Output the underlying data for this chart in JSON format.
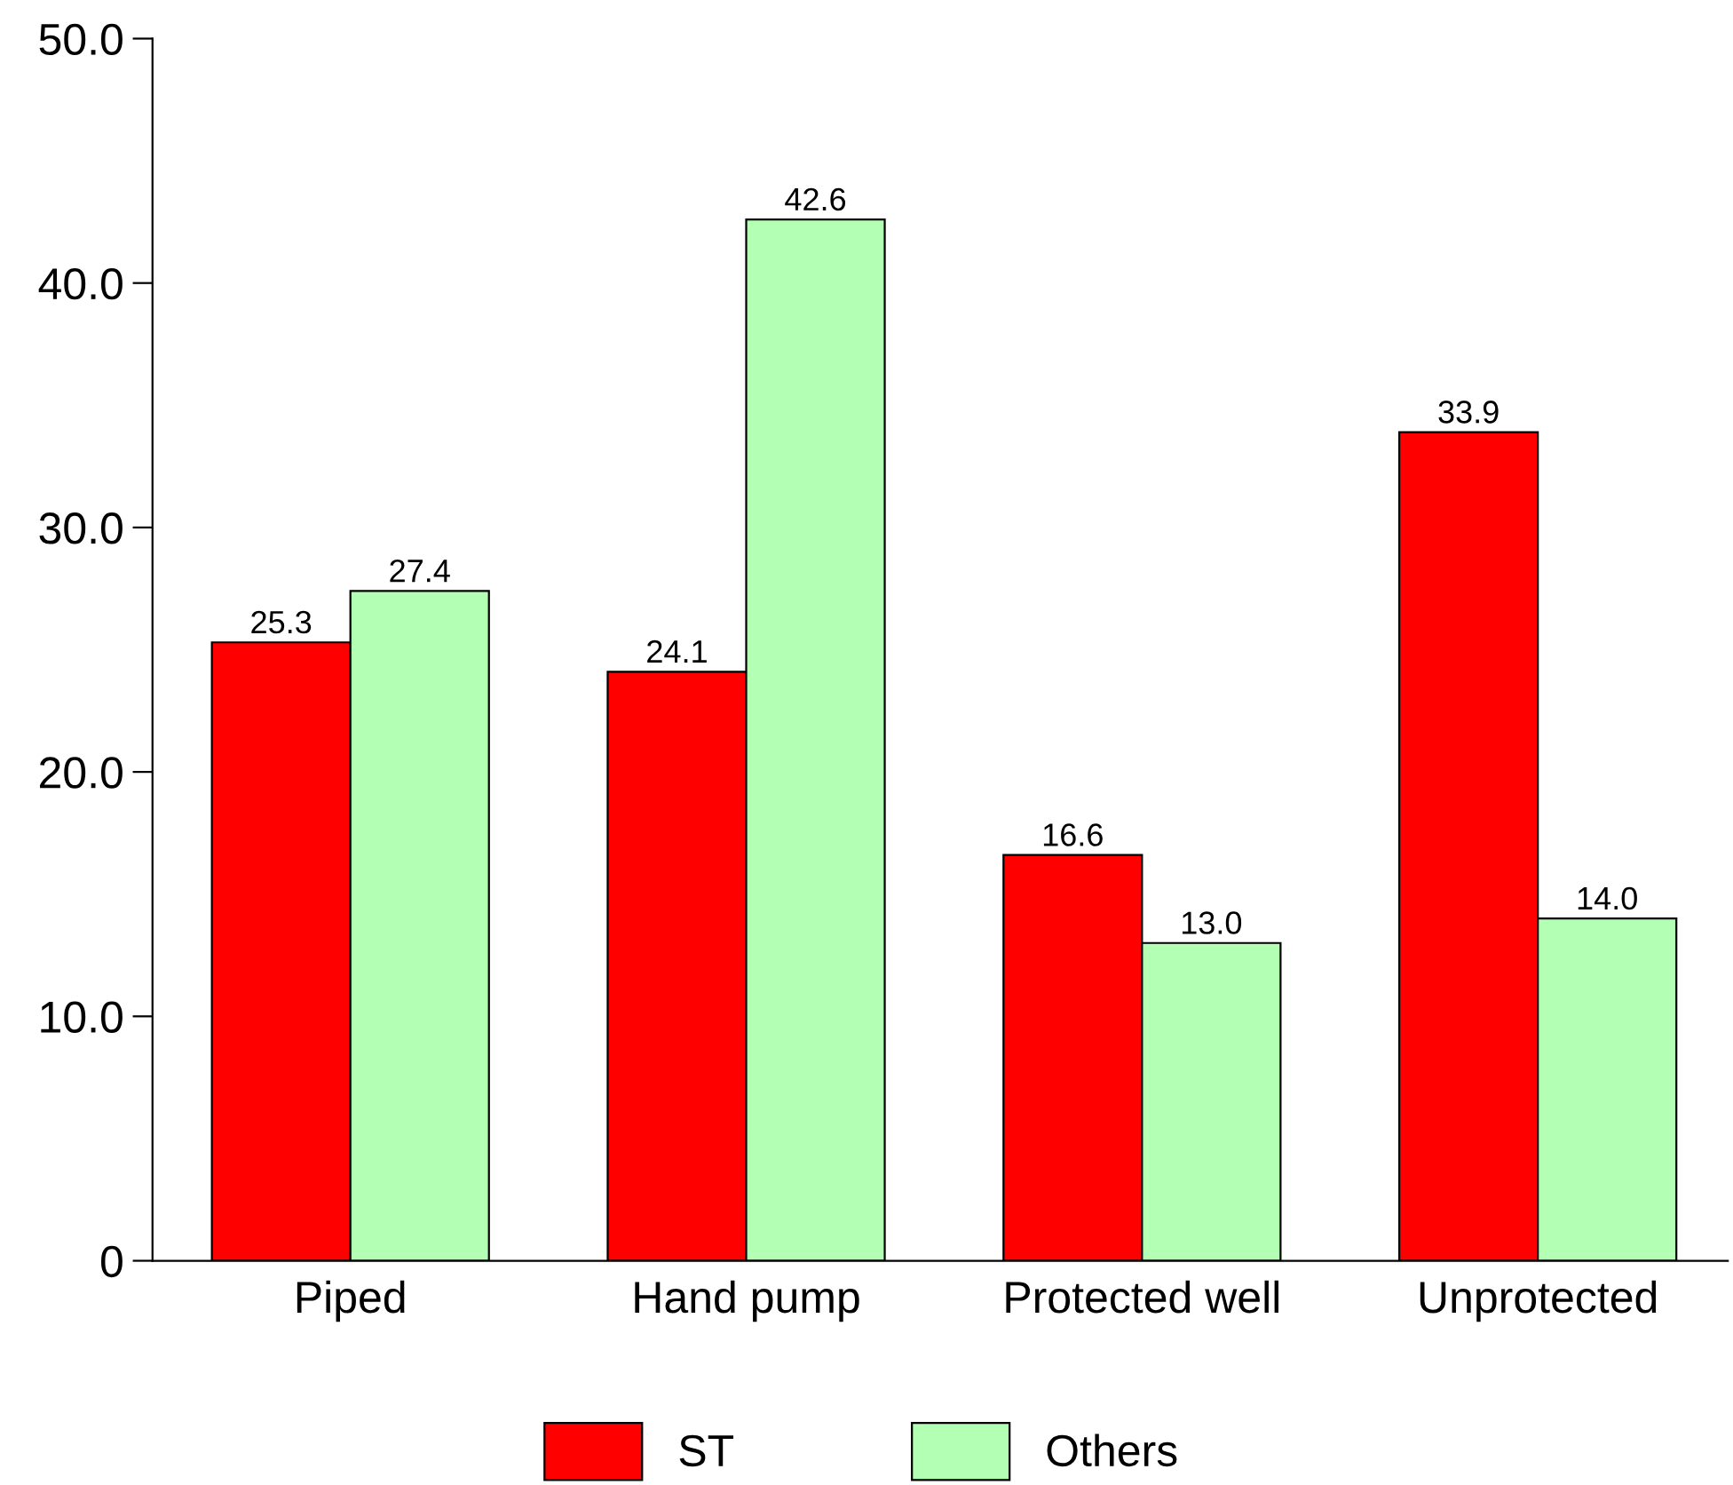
{
  "chart_data": {
    "type": "bar",
    "categories": [
      "Piped",
      "Hand pump",
      "Protected well",
      "Unprotected"
    ],
    "series": [
      {
        "name": "ST",
        "color": "#ff0000",
        "values": [
          25.3,
          24.1,
          16.6,
          33.9
        ],
        "value_labels": [
          "25.3",
          "24.1",
          "16.6",
          "33.9"
        ]
      },
      {
        "name": "Others",
        "color": "#b3ffb3",
        "values": [
          27.4,
          42.6,
          13.0,
          14.0
        ],
        "value_labels": [
          "27.4",
          "42.6",
          "13.0",
          "14.0"
        ]
      }
    ],
    "ylim": [
      0,
      50
    ],
    "yticks": [
      0,
      {
        "value": 10,
        "label": "10.0"
      },
      {
        "value": 20,
        "label": "20.0"
      },
      {
        "value": 30,
        "label": "30.0"
      },
      {
        "value": 40,
        "label": "40.0"
      },
      {
        "value": 50,
        "label": "50.0"
      }
    ],
    "legend": "bottom",
    "grid": false
  }
}
